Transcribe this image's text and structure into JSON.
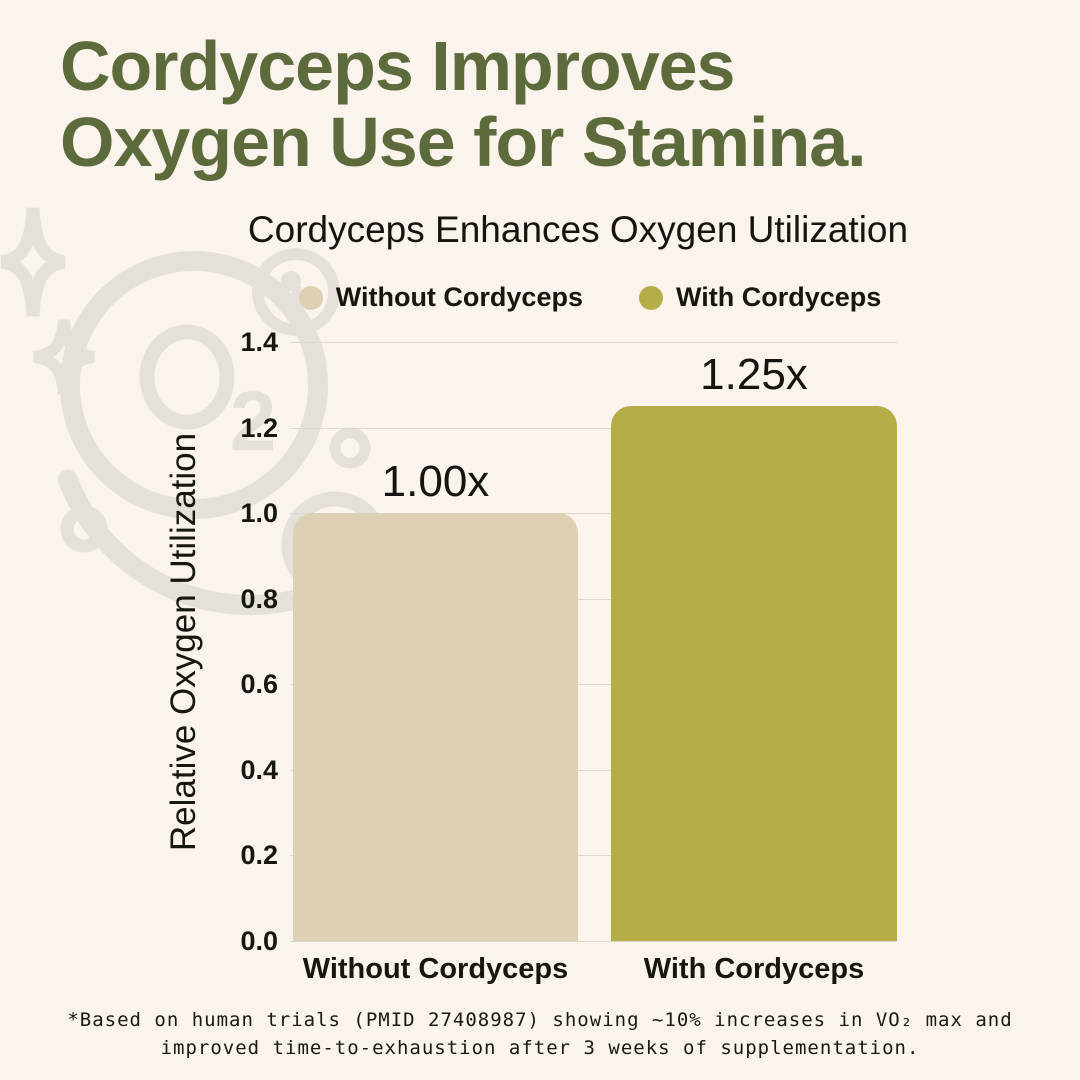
{
  "page": {
    "background": "#faf4ec",
    "title_color": "#5c6a3c",
    "text_color": "#17160f",
    "decor_color": "#e5e1da",
    "gridline_color": "#dcd8d0"
  },
  "header": {
    "title_line1": "Cordyceps Improves",
    "title_line2": "Oxygen Use for Stamina."
  },
  "chart": {
    "title": "Cordyceps Enhances Oxygen Utilization",
    "ylabel": "Relative Oxygen Utilization",
    "legend": [
      {
        "label": "Without Cordyceps",
        "color": "#ded0b5"
      },
      {
        "label": "With Cordyceps",
        "color": "#b6ad49"
      }
    ]
  },
  "chart_data": {
    "type": "bar",
    "title": "Cordyceps Enhances Oxygen Utilization",
    "categories": [
      "Without Cordyceps",
      "With Cordyceps"
    ],
    "values": [
      1.0,
      1.25
    ],
    "bar_labels": [
      "1.00x",
      "1.25x"
    ],
    "bar_colors": [
      "#ded0b5",
      "#b6ad49"
    ],
    "xlabel": "",
    "ylabel": "Relative Oxygen Utilization",
    "ylim": [
      0.0,
      1.4
    ],
    "yticks": [
      0.0,
      0.2,
      0.4,
      0.6,
      0.8,
      1.0,
      1.2,
      1.4
    ],
    "ytick_labels": [
      "0.0",
      "0.2",
      "0.4",
      "0.6",
      "0.8",
      "1.0",
      "1.2",
      "1.4"
    ],
    "grid": true,
    "legend_position": "top"
  },
  "footer": {
    "line1": "*Based on human trials (PMID 27408987) showing ~10% increases in VO₂ max and",
    "line2": "improved time-to-exhaustion after 3 weeks of supplementation."
  }
}
